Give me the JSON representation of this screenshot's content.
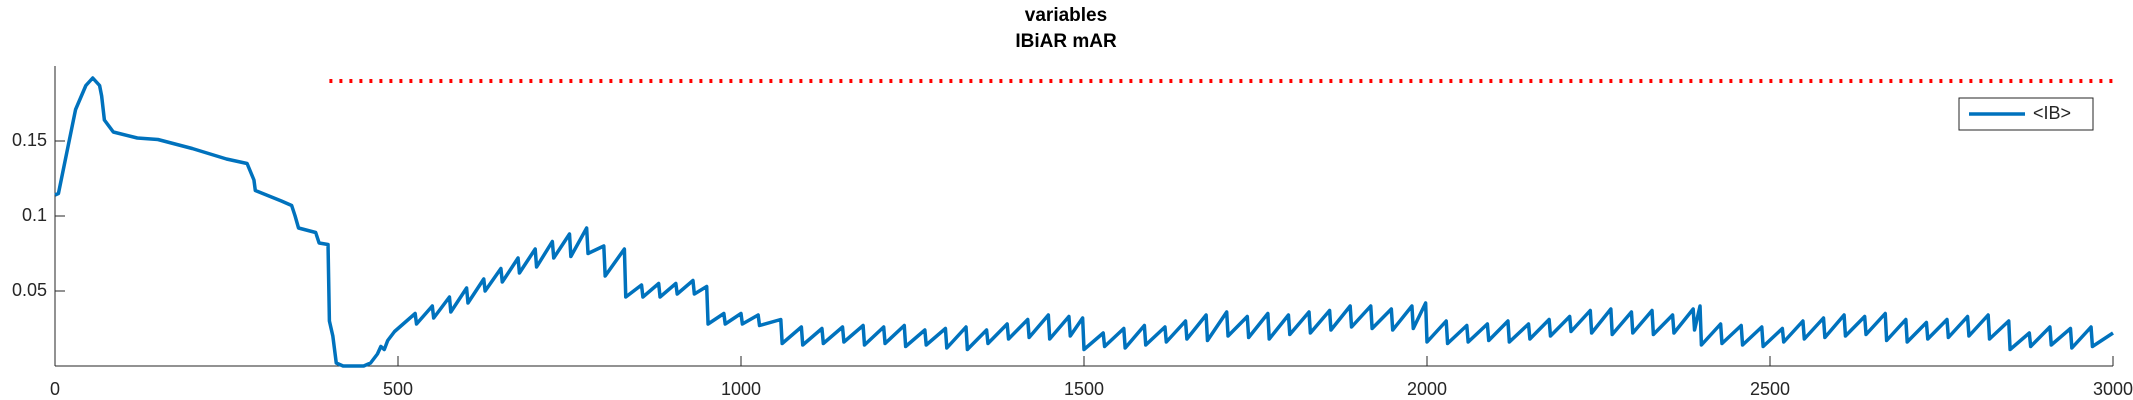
{
  "chart_data": {
    "type": "line",
    "title": "variables",
    "subtitle": "IBiAR mAR",
    "xlim": [
      0,
      3000
    ],
    "xticks": [
      0,
      500,
      1000,
      1500,
      2000,
      2500,
      3000
    ],
    "ylim": [
      0,
      0.2
    ],
    "yticks": [
      0.05,
      0.1,
      0.15
    ],
    "grid": false,
    "legend": "northeast",
    "x": [
      0,
      5,
      30,
      45,
      55,
      65,
      68,
      72,
      85,
      120,
      150,
      200,
      250,
      280,
      290,
      292,
      330,
      345,
      350,
      355,
      380,
      385,
      398,
      400,
      405,
      410,
      420,
      450,
      460,
      470,
      475,
      480,
      485,
      495,
      500,
      525,
      527,
      550,
      552,
      575,
      577,
      600,
      602,
      625,
      627,
      650,
      652,
      675,
      677,
      700,
      702,
      725,
      727,
      750,
      752,
      775,
      777,
      800,
      802,
      830,
      832,
      855,
      857,
      880,
      882,
      905,
      907,
      930,
      932,
      950,
      952,
      975,
      977,
      1000,
      1002,
      1025,
      1027,
      1058,
      1060,
      1088,
      1090,
      1118,
      1120,
      1148,
      1150,
      1178,
      1180,
      1208,
      1210,
      1238,
      1240,
      1268,
      1270,
      1298,
      1300,
      1328,
      1330,
      1358,
      1360,
      1388,
      1390,
      1418,
      1420,
      1448,
      1450,
      1478,
      1480,
      1498,
      1500,
      1528,
      1530,
      1558,
      1560,
      1588,
      1590,
      1618,
      1620,
      1648,
      1650,
      1678,
      1680,
      1708,
      1710,
      1738,
      1740,
      1768,
      1770,
      1798,
      1800,
      1828,
      1830,
      1858,
      1860,
      1888,
      1890,
      1918,
      1920,
      1948,
      1950,
      1978,
      1980,
      1998,
      2000,
      2028,
      2030,
      2058,
      2060,
      2088,
      2090,
      2118,
      2120,
      2148,
      2150,
      2178,
      2180,
      2208,
      2210,
      2238,
      2240,
      2268,
      2270,
      2298,
      2300,
      2328,
      2330,
      2358,
      2360,
      2388,
      2390,
      2398,
      2400,
      2428,
      2430,
      2458,
      2460,
      2488,
      2490,
      2518,
      2520,
      2548,
      2550,
      2578,
      2580,
      2608,
      2610,
      2638,
      2640,
      2668,
      2670,
      2698,
      2700,
      2728,
      2730,
      2758,
      2760,
      2788,
      2790,
      2818,
      2820,
      2848,
      2850,
      2878,
      2880,
      2908,
      2910,
      2938,
      2940,
      2968,
      2970,
      3000
    ],
    "series": [
      {
        "name": "<IB>",
        "color": "#0072bd",
        "values": [
          0.114,
          0.115,
          0.171,
          0.187,
          0.192,
          0.187,
          0.18,
          0.164,
          0.156,
          0.152,
          0.151,
          0.145,
          0.138,
          0.135,
          0.124,
          0.117,
          0.11,
          0.107,
          0.1,
          0.092,
          0.089,
          0.082,
          0.081,
          0.03,
          0.02,
          0.002,
          0,
          0,
          0.002,
          0.008,
          0.013,
          0.011,
          0.017,
          0.023,
          0.025,
          0.035,
          0.028,
          0.04,
          0.032,
          0.046,
          0.036,
          0.052,
          0.042,
          0.058,
          0.05,
          0.065,
          0.056,
          0.072,
          0.062,
          0.078,
          0.066,
          0.083,
          0.072,
          0.088,
          0.073,
          0.092,
          0.075,
          0.08,
          0.06,
          0.078,
          0.046,
          0.054,
          0.046,
          0.055,
          0.046,
          0.055,
          0.048,
          0.057,
          0.048,
          0.053,
          0.028,
          0.035,
          0.028,
          0.035,
          0.028,
          0.034,
          0.027,
          0.031,
          0.015,
          0.026,
          0.014,
          0.025,
          0.015,
          0.026,
          0.016,
          0.027,
          0.014,
          0.026,
          0.015,
          0.027,
          0.013,
          0.024,
          0.014,
          0.025,
          0.012,
          0.026,
          0.011,
          0.024,
          0.015,
          0.028,
          0.018,
          0.031,
          0.019,
          0.034,
          0.018,
          0.033,
          0.02,
          0.032,
          0.011,
          0.022,
          0.013,
          0.025,
          0.012,
          0.027,
          0.014,
          0.026,
          0.016,
          0.03,
          0.018,
          0.034,
          0.017,
          0.036,
          0.02,
          0.033,
          0.019,
          0.035,
          0.018,
          0.034,
          0.021,
          0.036,
          0.022,
          0.037,
          0.024,
          0.04,
          0.026,
          0.04,
          0.025,
          0.038,
          0.024,
          0.04,
          0.025,
          0.042,
          0.016,
          0.03,
          0.015,
          0.027,
          0.016,
          0.028,
          0.017,
          0.03,
          0.016,
          0.028,
          0.018,
          0.031,
          0.02,
          0.033,
          0.023,
          0.037,
          0.022,
          0.038,
          0.021,
          0.036,
          0.022,
          0.037,
          0.021,
          0.034,
          0.022,
          0.038,
          0.024,
          0.04,
          0.014,
          0.028,
          0.015,
          0.027,
          0.014,
          0.026,
          0.013,
          0.025,
          0.016,
          0.03,
          0.018,
          0.032,
          0.019,
          0.034,
          0.02,
          0.033,
          0.021,
          0.035,
          0.017,
          0.031,
          0.016,
          0.029,
          0.018,
          0.031,
          0.019,
          0.033,
          0.02,
          0.034,
          0.018,
          0.03,
          0.011,
          0.022,
          0.013,
          0.026,
          0.014,
          0.025,
          0.012,
          0.026,
          0.013,
          0.022
        ]
      }
    ],
    "reference_line": {
      "x": [
        400,
        3000
      ],
      "y": 0.19,
      "color": "#ff0000"
    }
  }
}
